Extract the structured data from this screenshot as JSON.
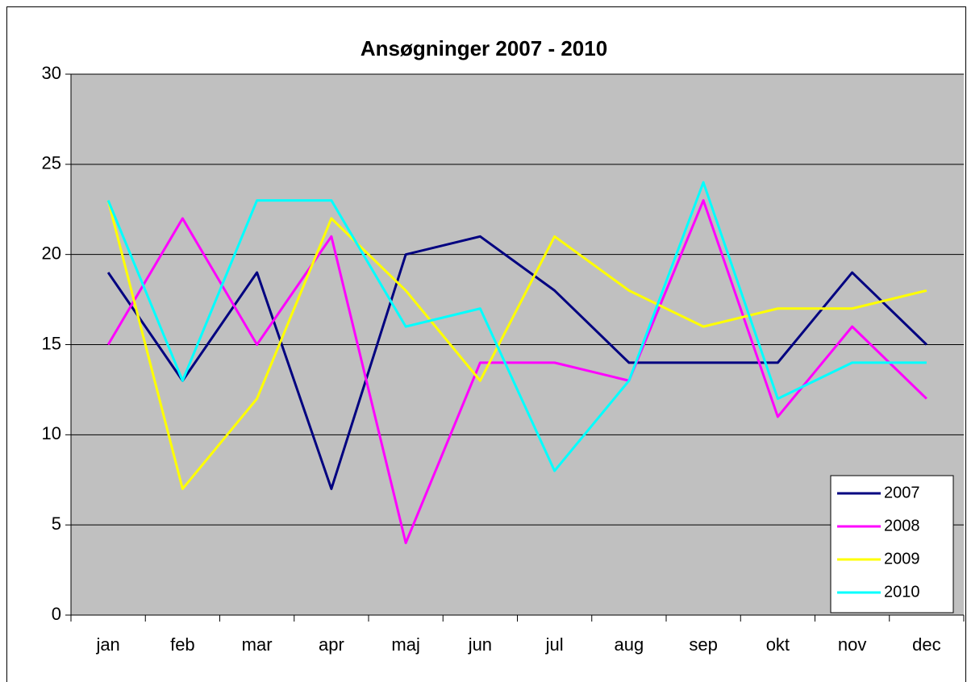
{
  "chart_data": {
    "type": "line",
    "title": "Ansøgninger 2007 - 2010",
    "categories": [
      "jan",
      "feb",
      "mar",
      "apr",
      "maj",
      "jun",
      "jul",
      "aug",
      "sep",
      "okt",
      "nov",
      "dec"
    ],
    "series": [
      {
        "name": "2007",
        "color": "#000080",
        "values": [
          19,
          13,
          19,
          7,
          20,
          21,
          18,
          14,
          14,
          14,
          19,
          15
        ]
      },
      {
        "name": "2008",
        "color": "#ff00ff",
        "values": [
          15,
          22,
          15,
          21,
          4,
          14,
          14,
          13,
          23,
          11,
          16,
          12
        ]
      },
      {
        "name": "2009",
        "color": "#ffff00",
        "values": [
          23,
          7,
          12,
          22,
          18,
          13,
          21,
          18,
          16,
          17,
          17,
          18
        ]
      },
      {
        "name": "2010",
        "color": "#00ffff",
        "values": [
          23,
          13,
          23,
          23,
          16,
          17,
          8,
          13,
          24,
          12,
          14,
          14
        ]
      }
    ],
    "ylim": [
      0,
      30
    ],
    "yticks": [
      0,
      5,
      10,
      15,
      20,
      25,
      30
    ],
    "grid": true,
    "legend": "lower right"
  }
}
